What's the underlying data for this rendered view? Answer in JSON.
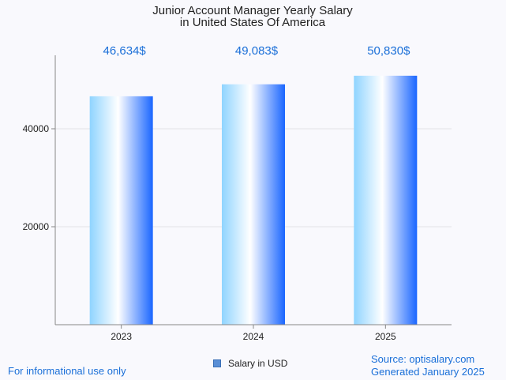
{
  "chart_data": {
    "type": "bar",
    "title": "Junior Account Manager Yearly Salary",
    "subtitle": "in United States Of America",
    "categories": [
      "2023",
      "2024",
      "2025"
    ],
    "series": [
      {
        "name": "Salary in USD",
        "values": [
          46634,
          49083,
          50830
        ]
      }
    ],
    "data_labels": [
      "46,634$",
      "49,083$",
      "50,830$"
    ],
    "yticks": [
      20000,
      40000
    ],
    "ytick_labels": [
      "20000",
      "40000"
    ],
    "ylim": [
      0,
      55000
    ],
    "grid": true,
    "legend_position": "bottom"
  },
  "footer": {
    "disclaimer": "For informational use only",
    "source": "Source: optisalary.com",
    "generated": "Generated January 2025"
  },
  "colors": {
    "title": "#222222",
    "data_label": "#1a6fd8",
    "bar_edge": "#1a66ff",
    "bar_light": "#8fd4ff",
    "axis": "#888888",
    "grid": "#e2e2e6"
  }
}
